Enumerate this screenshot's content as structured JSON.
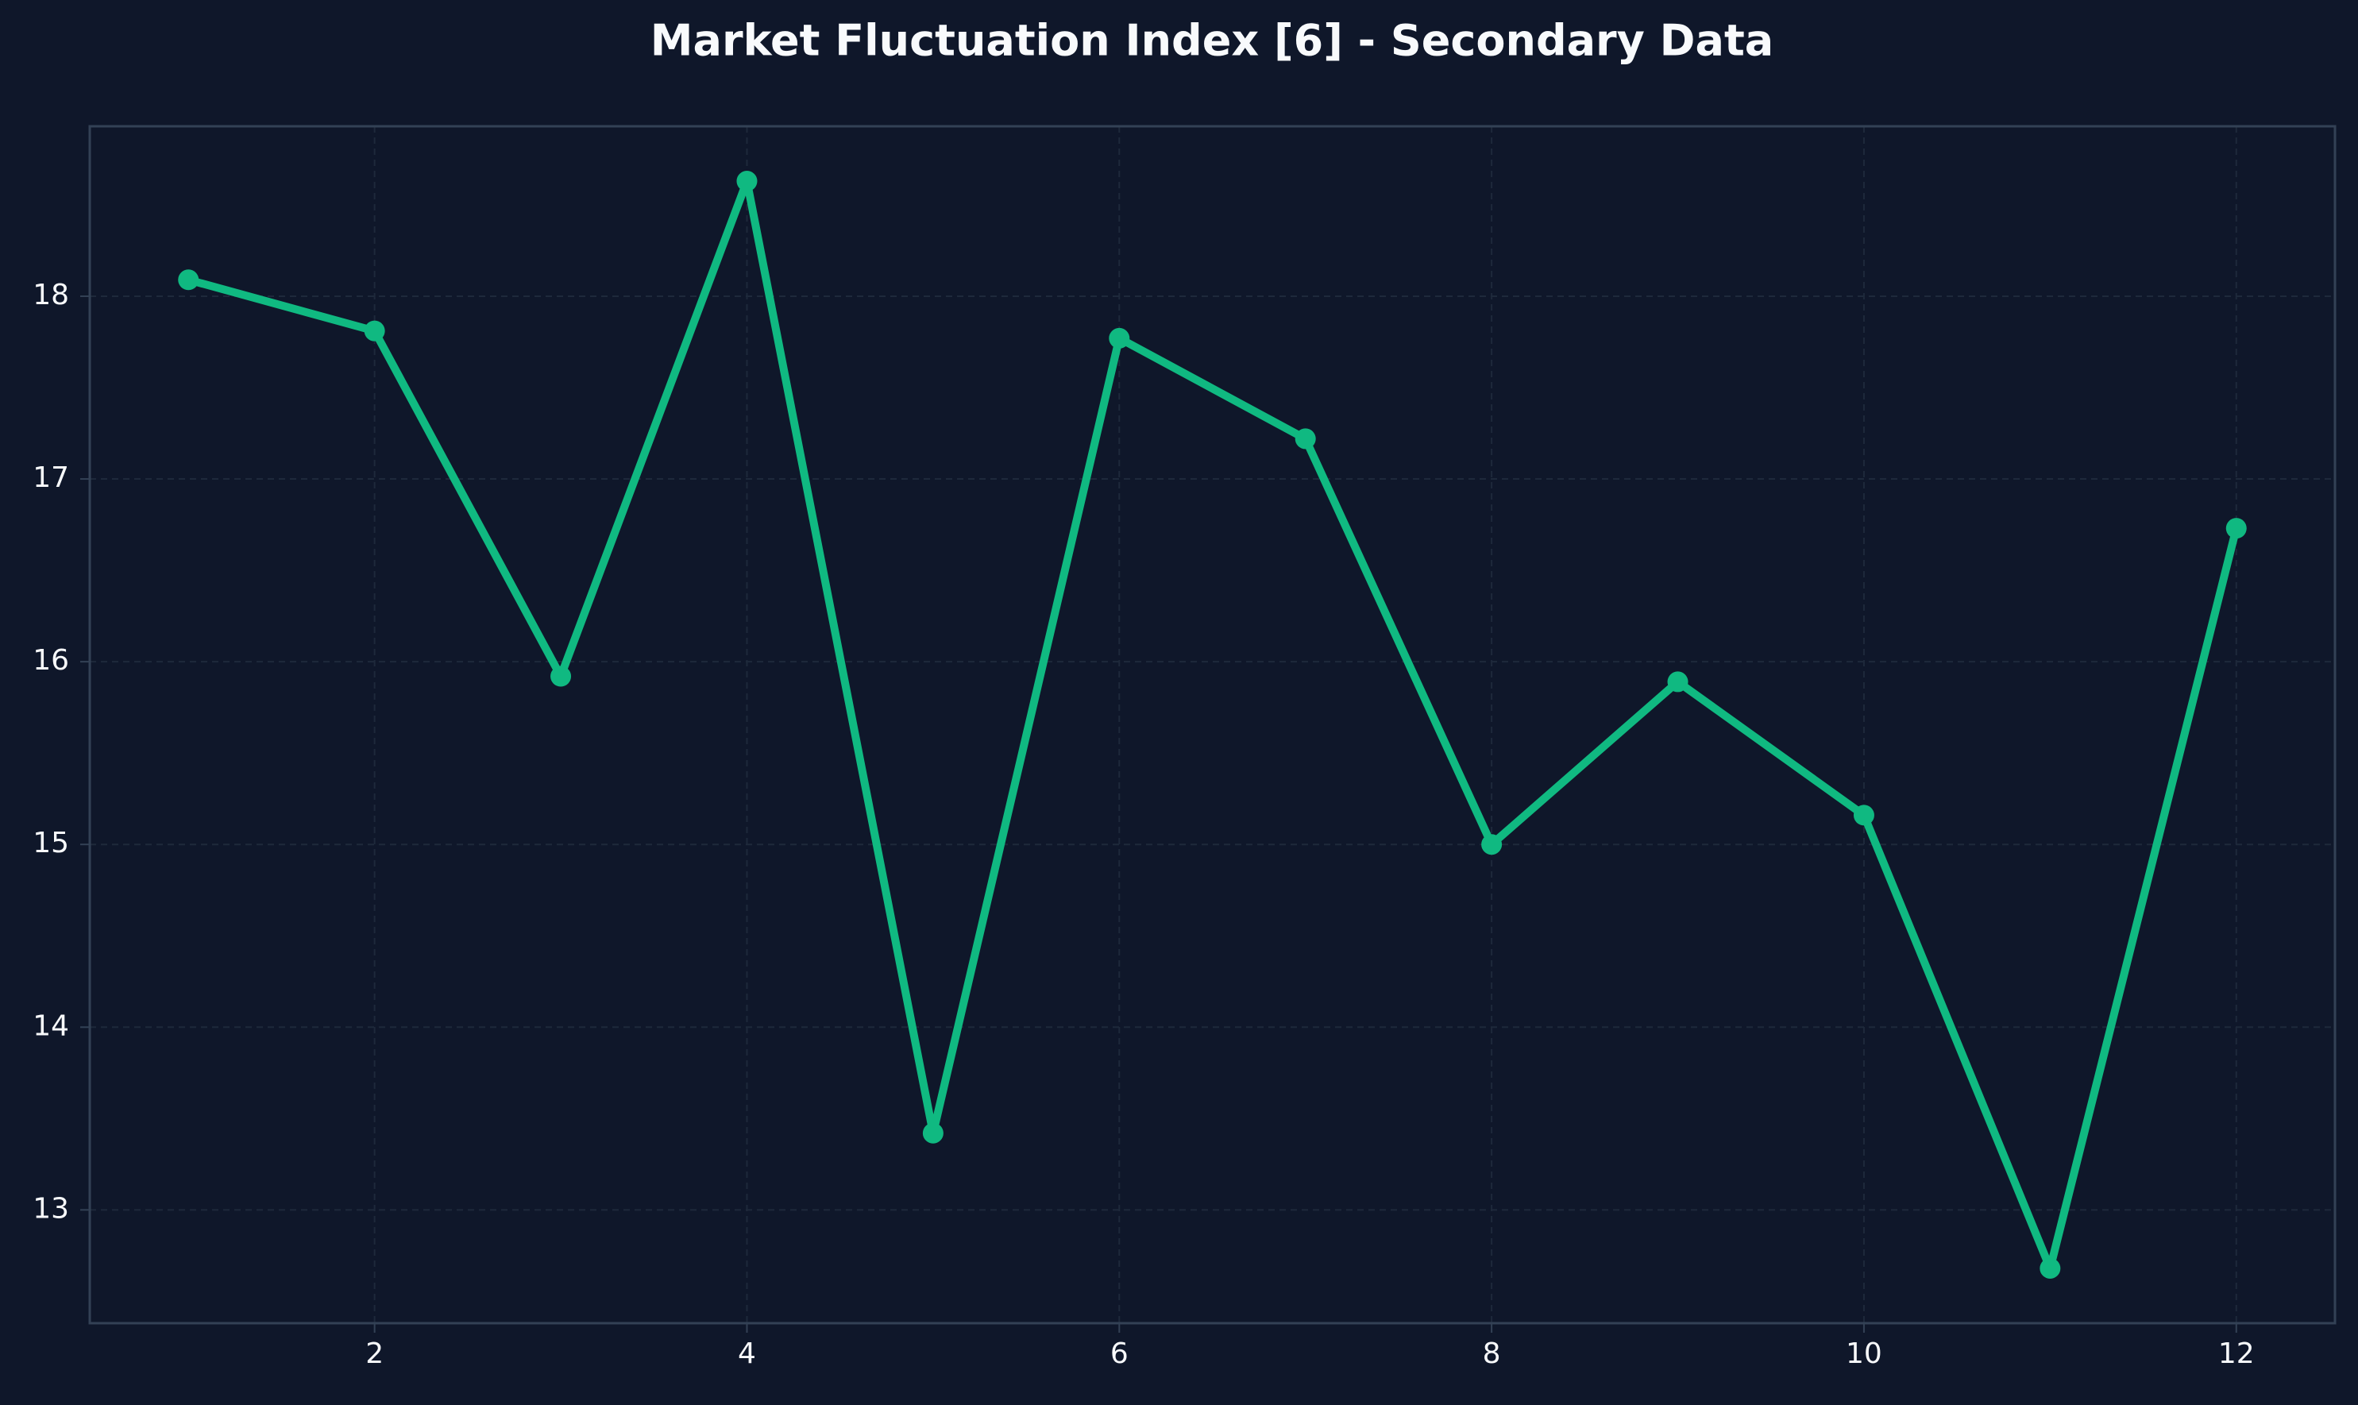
{
  "colors": {
    "background": "#0f172a",
    "line": "#10b981",
    "text": "#f8fafc",
    "grid": "#1e293b",
    "axis": "#334155"
  },
  "chart_data": {
    "type": "line",
    "title": "Market Fluctuation Index [6] - Secondary Data",
    "xlabel": "",
    "ylabel": "",
    "x": [
      1,
      2,
      3,
      4,
      5,
      6,
      7,
      8,
      9,
      10,
      11,
      12
    ],
    "series": [
      {
        "values": [
          18.09,
          17.81,
          15.92,
          18.63,
          13.42,
          17.77,
          17.22,
          15.0,
          15.89,
          15.16,
          12.68,
          16.73
        ]
      }
    ],
    "xlim": [
      0.47,
      12.53
    ],
    "ylim": [
      12.38,
      18.93
    ],
    "xticks": [
      2,
      4,
      6,
      8,
      10,
      12
    ],
    "yticks": [
      13,
      14,
      15,
      16,
      17,
      18
    ],
    "grid": true,
    "legend": "none"
  }
}
